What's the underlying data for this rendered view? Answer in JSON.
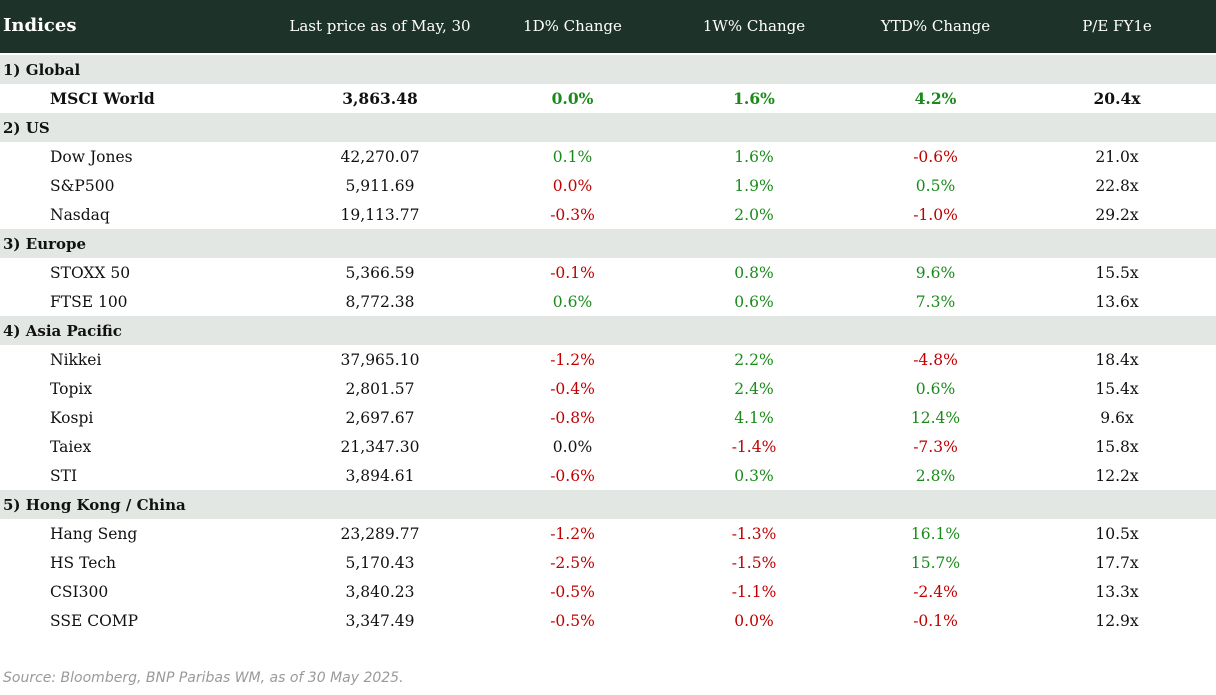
{
  "header": {
    "indices": "Indices",
    "last_price": "Last price as of May, 30",
    "d1": "1D% Change",
    "w1": "1W% Change",
    "ytd": "YTD% Change",
    "pe": "P/E FY1e"
  },
  "colors": {
    "header_bg": "#1d3329",
    "group_bg": "#e3e7e4",
    "positive": "#1b8a1b",
    "negative": "#c00000"
  },
  "groups": [
    {
      "label": "1) Global",
      "rows": [
        {
          "name": "MSCI World",
          "price": "3,863.48",
          "d1": "0.0%",
          "w1": "1.6%",
          "ytd": "4.2%",
          "pe": "20.4x"
        }
      ]
    },
    {
      "label": "2) US",
      "rows": [
        {
          "name": "Dow Jones",
          "price": "42,270.07",
          "d1": "0.1%",
          "w1": "1.6%",
          "ytd": "-0.6%",
          "pe": "21.0x"
        },
        {
          "name": "S&P500",
          "price": "5,911.69",
          "d1": "0.0%",
          "w1": "1.9%",
          "ytd": "0.5%",
          "pe": "22.8x"
        },
        {
          "name": "Nasdaq",
          "price": "19,113.77",
          "d1": "-0.3%",
          "w1": "2.0%",
          "ytd": "-1.0%",
          "pe": "29.2x"
        }
      ]
    },
    {
      "label": "3) Europe",
      "rows": [
        {
          "name": "STOXX 50",
          "price": "5,366.59",
          "d1": "-0.1%",
          "w1": "0.8%",
          "ytd": "9.6%",
          "pe": "15.5x"
        },
        {
          "name": "FTSE 100",
          "price": "8,772.38",
          "d1": "0.6%",
          "w1": "0.6%",
          "ytd": "7.3%",
          "pe": "13.6x"
        }
      ]
    },
    {
      "label": "4) Asia Pacific",
      "rows": [
        {
          "name": "Nikkei",
          "price": "37,965.10",
          "d1": "-1.2%",
          "w1": "2.2%",
          "ytd": "-4.8%",
          "pe": "18.4x"
        },
        {
          "name": "Topix",
          "price": "2,801.57",
          "d1": "-0.4%",
          "w1": "2.4%",
          "ytd": "0.6%",
          "pe": "15.4x"
        },
        {
          "name": "Kospi",
          "price": "2,697.67",
          "d1": "-0.8%",
          "w1": "4.1%",
          "ytd": "12.4%",
          "pe": "9.6x"
        },
        {
          "name": "Taiex",
          "price": "21,347.30",
          "d1": "0.0%",
          "w1": "-1.4%",
          "ytd": "-7.3%",
          "pe": "15.8x"
        },
        {
          "name": "STI",
          "price": "3,894.61",
          "d1": "-0.6%",
          "w1": "0.3%",
          "ytd": "2.8%",
          "pe": "12.2x"
        }
      ]
    },
    {
      "label": "5) Hong Kong / China",
      "rows": [
        {
          "name": "Hang Seng",
          "price": "23,289.77",
          "d1": "-1.2%",
          "w1": "-1.3%",
          "ytd": "16.1%",
          "pe": "10.5x"
        },
        {
          "name": "HS Tech",
          "price": "5,170.43",
          "d1": "-2.5%",
          "w1": "-1.5%",
          "ytd": "15.7%",
          "pe": "17.7x"
        },
        {
          "name": "CSI300",
          "price": "3,840.23",
          "d1": "-0.5%",
          "w1": "-1.1%",
          "ytd": "-2.4%",
          "pe": "13.3x"
        },
        {
          "name": "SSE COMP",
          "price": "3,347.49",
          "d1": "-0.5%",
          "w1": "0.0%",
          "ytd": "-0.1%",
          "pe": "12.9x"
        }
      ]
    }
  ],
  "source": "Source: Bloomberg, BNP Paribas WM, as of 30 May 2025."
}
